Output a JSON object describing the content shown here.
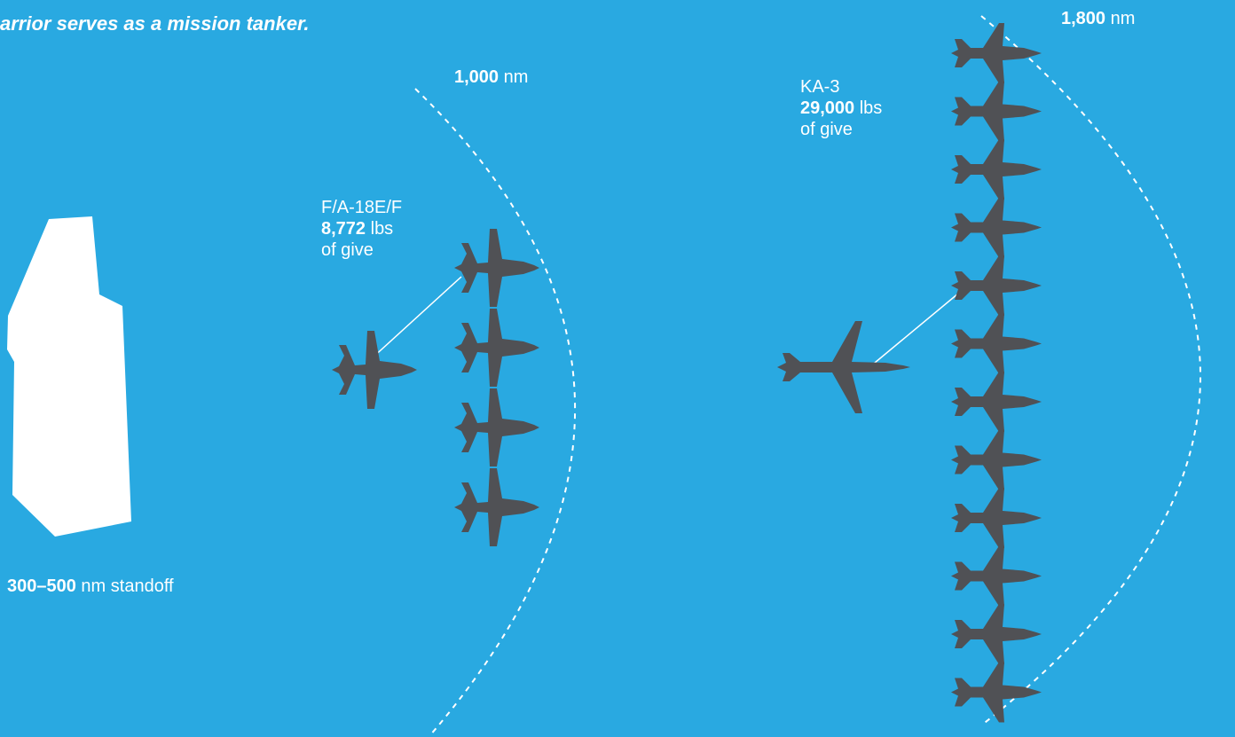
{
  "headline": "arrior serves as a mission tanker.",
  "carrier": {
    "standoff_value": "300–500",
    "standoff_unit": " nm standoff"
  },
  "range_inner": {
    "value": "1,000",
    "unit": " nm"
  },
  "range_outer": {
    "value": "1,800",
    "unit": " nm"
  },
  "fa18": {
    "name": "F/A-18E/F",
    "give_value": "8,772",
    "give_unit": " lbs",
    "give_suffix": "of give",
    "receivers": 4
  },
  "ka3": {
    "name": "KA-3",
    "give_value": "29,000",
    "give_unit": " lbs",
    "give_suffix": "of give",
    "receivers": 12
  },
  "colors": {
    "background": "#29a9e1",
    "aircraft": "#505155",
    "carrier": "#ffffff",
    "text": "#ffffff"
  }
}
